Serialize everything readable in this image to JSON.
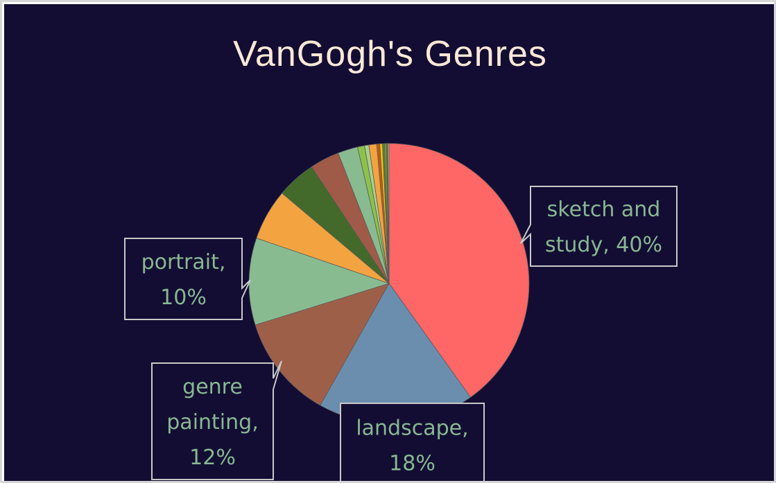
{
  "chart_data": {
    "type": "pie",
    "title": "VanGogh's Genres",
    "slices": [
      {
        "name": "sketch and study",
        "value": 40,
        "color": "#ff6666",
        "label_lines": [
          "sketch and",
          "study, 40%"
        ]
      },
      {
        "name": "landscape",
        "value": 18,
        "color": "#6b8eae",
        "label_lines": [
          "landscape,",
          "18%"
        ]
      },
      {
        "name": "genre painting",
        "value": 12,
        "color": "#9e5f49",
        "label_lines": [
          "genre",
          "painting,",
          "12%"
        ]
      },
      {
        "name": "portrait",
        "value": 10,
        "color": "#89bb91",
        "label_lines": [
          "portrait,",
          "10%"
        ]
      },
      {
        "value": 5.9,
        "color": "#f3a33f",
        "label_lines": []
      },
      {
        "value": 4.5,
        "color": "#436a2a",
        "label_lines": []
      },
      {
        "value": 3.4,
        "color": "#a05a48",
        "label_lines": []
      },
      {
        "value": 2.3,
        "color": "#89bb91",
        "label_lines": []
      },
      {
        "value": 0.8,
        "color": "#8bc34a",
        "label_lines": []
      },
      {
        "value": 0.5,
        "color": "#a8d08d",
        "label_lines": []
      },
      {
        "value": 0.9,
        "color": "#f3a33f",
        "label_lines": []
      },
      {
        "value": 0.35,
        "color": "#c55a11",
        "label_lines": []
      },
      {
        "value": 0.3,
        "color": "#ffc000",
        "label_lines": []
      },
      {
        "value": 0.25,
        "color": "#548235",
        "label_lines": []
      },
      {
        "value": 0.2,
        "color": "#70ad47",
        "label_lines": []
      },
      {
        "value": 0.15,
        "color": "#7f6000",
        "label_lines": []
      },
      {
        "value": 0.15,
        "color": "#a9d18e",
        "label_lines": []
      }
    ],
    "start_angle": "12 o'clock",
    "direction": "clockwise",
    "data_labels": "callouts showing category and percentage",
    "legend": "none"
  },
  "colors": {
    "chart_background": "#130d33",
    "title": "#fde9d6",
    "label_text": "#88b892",
    "callout_border": "#c9c9c9",
    "slice_edge": "#5a5a5a"
  }
}
